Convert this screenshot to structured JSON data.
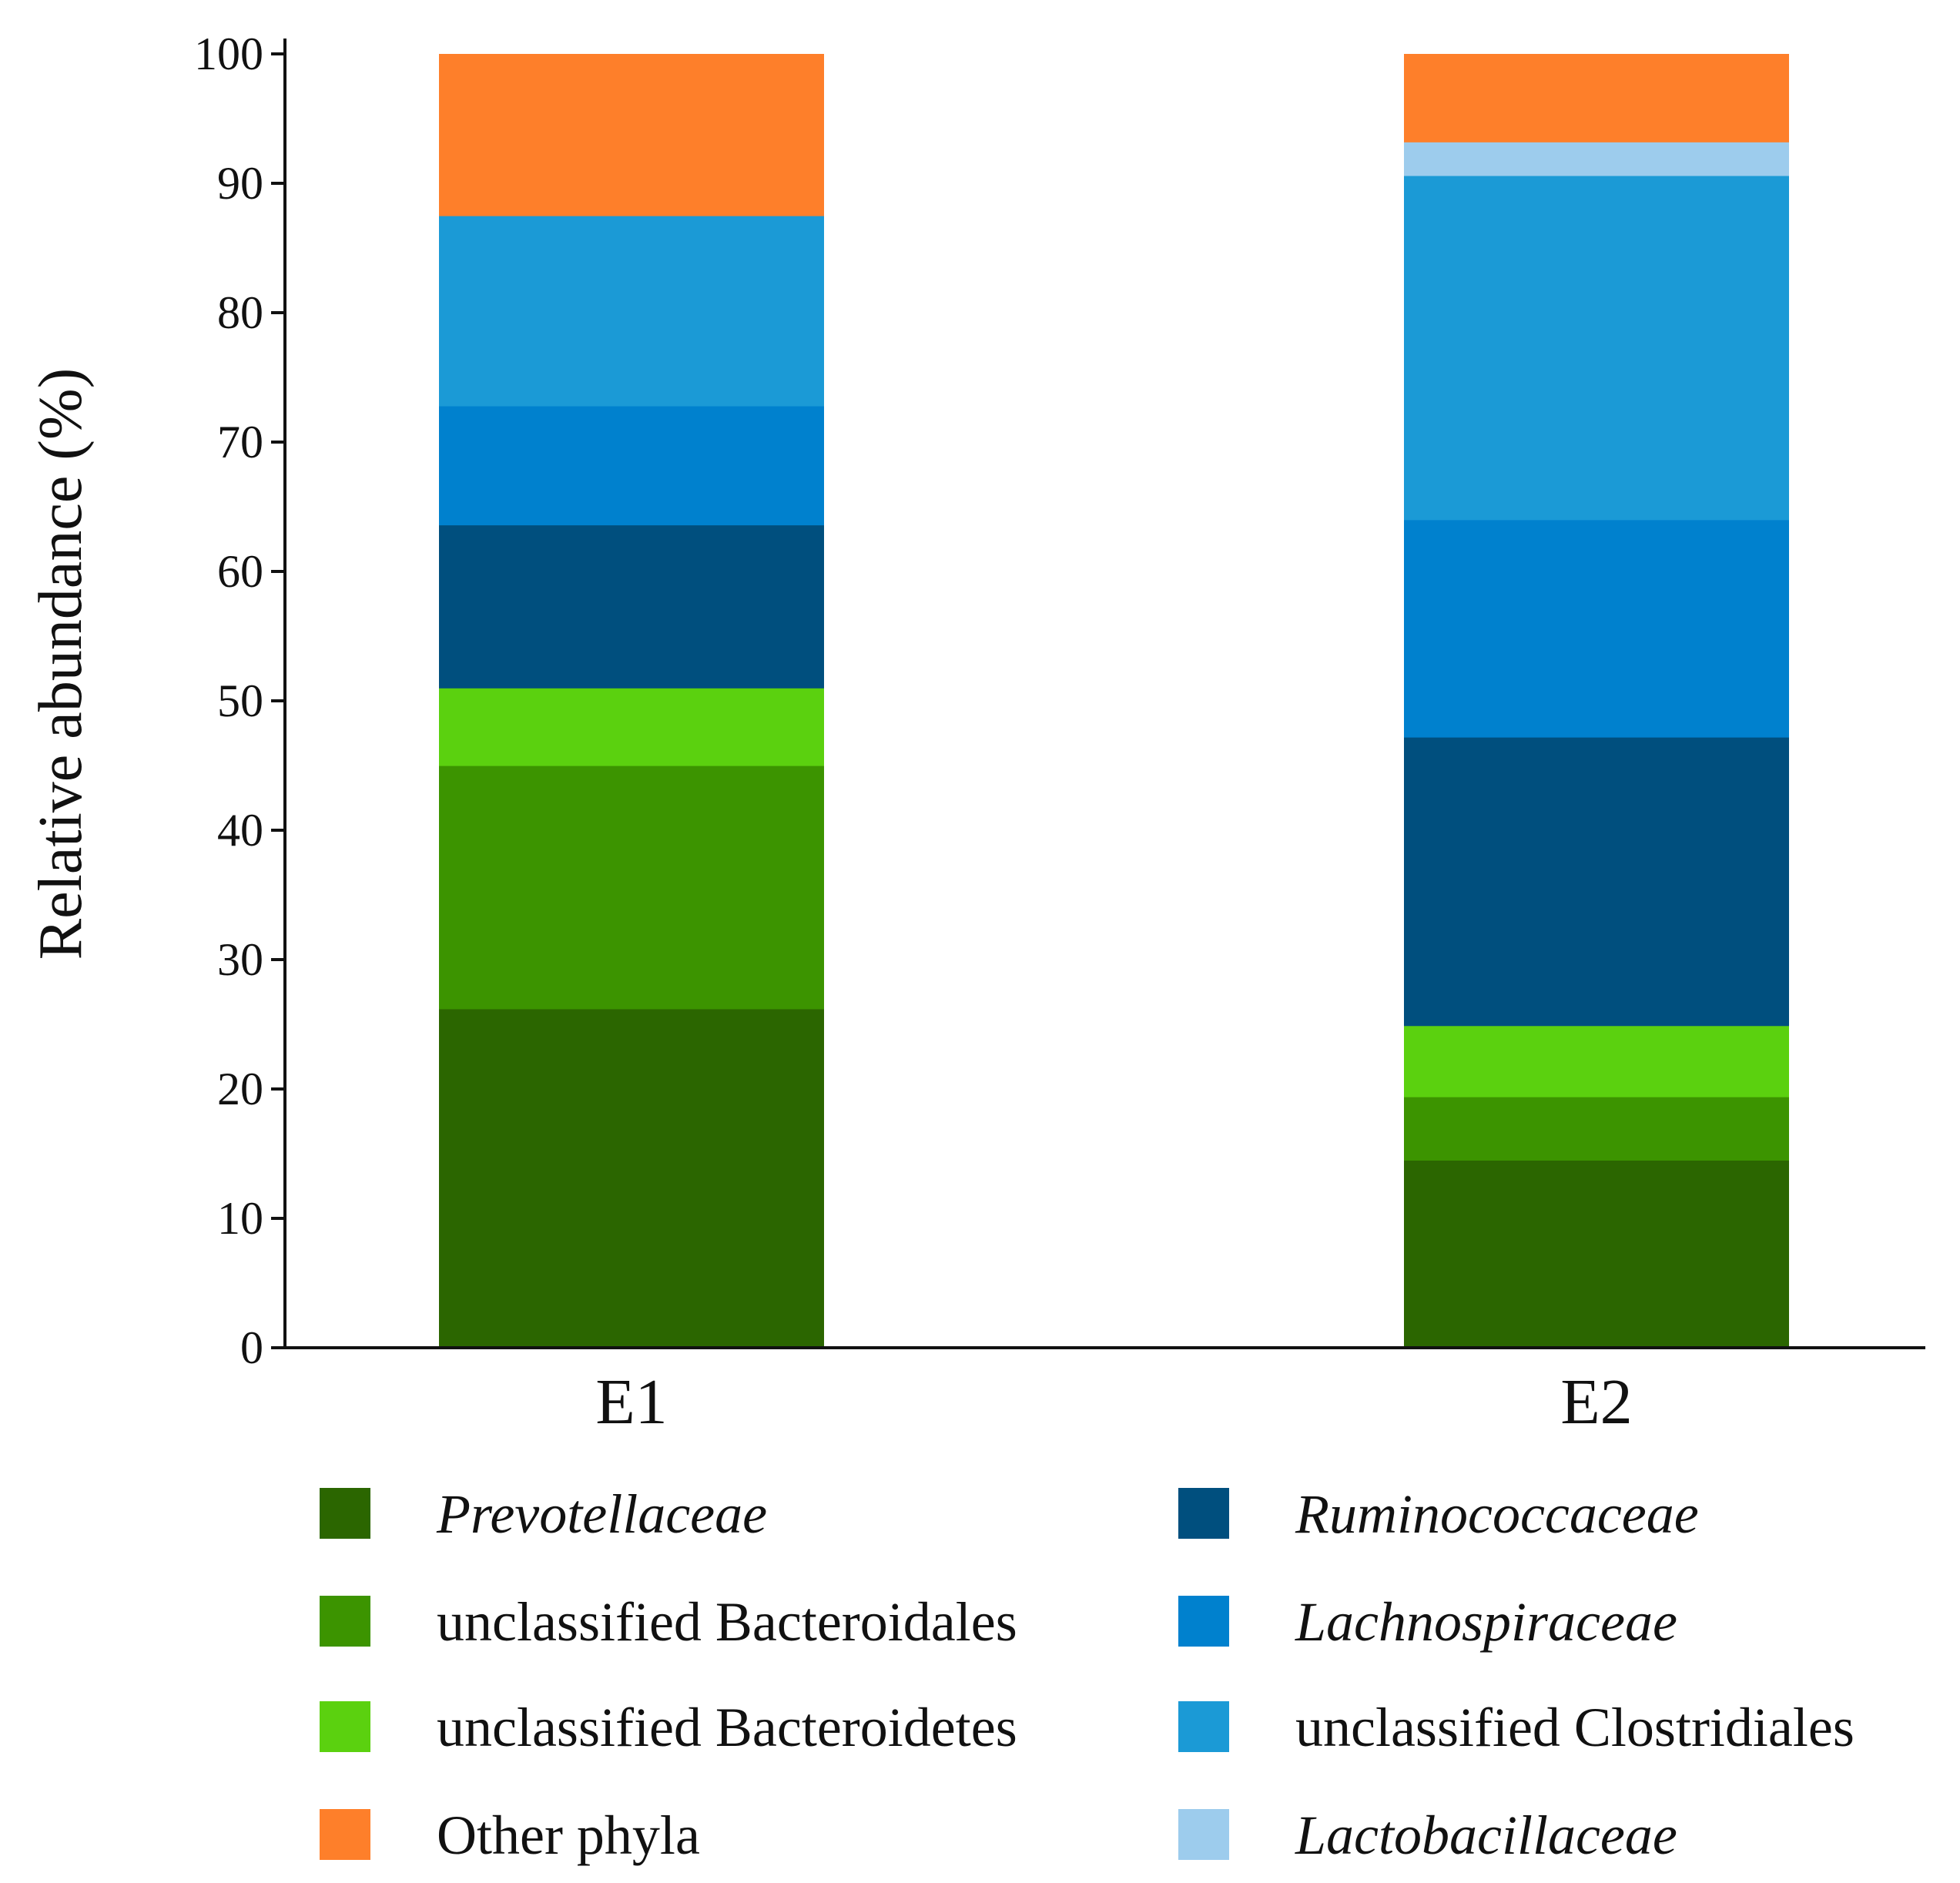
{
  "chart_data": {
    "type": "bar",
    "stacked": true,
    "title": "",
    "xlabel": "",
    "ylabel": "Relative abundance (%)",
    "ylim": [
      0,
      100
    ],
    "yticks": [
      "0",
      "10",
      "20",
      "30",
      "40",
      "50",
      "60",
      "70",
      "80",
      "90",
      "100"
    ],
    "categories": [
      "E1",
      "E2"
    ],
    "legend_position": "bottom",
    "series": [
      {
        "name": "Prevotellaceae",
        "color": "#2b6600",
        "italic": true,
        "values": [
          26.2,
          14.5
        ]
      },
      {
        "name": "unclassified Bacteroidales",
        "color": "#3c9400",
        "italic": false,
        "values": [
          18.8,
          4.9
        ]
      },
      {
        "name": "unclassified Bacteroidetes",
        "color": "#5bd10f",
        "italic": false,
        "values": [
          6.0,
          5.5
        ]
      },
      {
        "name": "Ruminococcaceae",
        "color": "#004f7e",
        "italic": true,
        "values": [
          12.6,
          22.3
        ]
      },
      {
        "name": "Lachnospiraceae",
        "color": "#0081ce",
        "italic": true,
        "values": [
          9.2,
          16.8
        ]
      },
      {
        "name": "unclassified Clostridiales",
        "color": "#1b9ad6",
        "italic": false,
        "values": [
          14.7,
          26.6
        ]
      },
      {
        "name": "Lactobacillaceae",
        "color": "#9dcced",
        "italic": true,
        "values": [
          0.0,
          2.6
        ]
      },
      {
        "name": "Other phyla",
        "color": "#fe7f2a",
        "italic": false,
        "values": [
          12.5,
          6.8
        ]
      }
    ],
    "legend_order": [
      "Prevotellaceae",
      "Ruminococcaceae",
      "unclassified Bacteroidales",
      "Lachnospiraceae",
      "unclassified Bacteroidetes",
      "unclassified Clostridiales",
      "Other phyla",
      "Lactobacillaceae"
    ]
  }
}
